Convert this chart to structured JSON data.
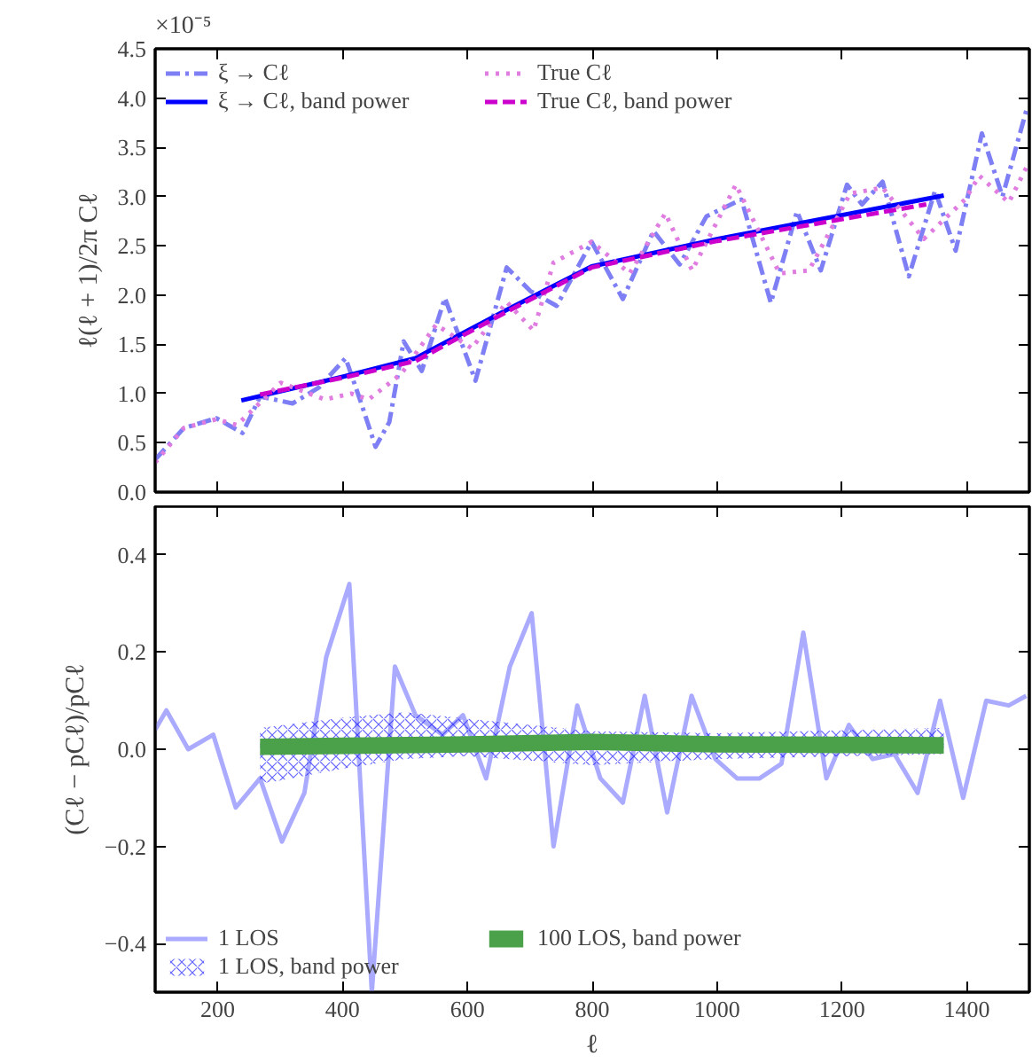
{
  "chart_data": [
    {
      "type": "line",
      "ylabel": "ℓ(ℓ + 1)/2π Cℓ",
      "annotations": [
        "×10⁻⁵"
      ],
      "xlim": [
        100,
        1500
      ],
      "xticks": [
        200,
        400,
        600,
        800,
        1000,
        1200,
        1400
      ],
      "ylim": [
        0,
        4.5
      ],
      "yticks": [
        {
          "value": 0,
          "label": "0.0"
        },
        {
          "value": 0.5,
          "label": "0.5"
        },
        {
          "value": 1,
          "label": "1.0"
        },
        {
          "value": 1.5,
          "label": "1.5"
        },
        {
          "value": 2,
          "label": "2.0"
        },
        {
          "value": 2.5,
          "label": "2.5"
        },
        {
          "value": 3,
          "label": "3.0"
        },
        {
          "value": 3.5,
          "label": "3.5"
        },
        {
          "value": 4,
          "label": "4.0"
        },
        {
          "value": 4.5,
          "label": "4.5"
        }
      ],
      "tick_labels": "y",
      "grid": false,
      "legend": "top left",
      "series": [
        {
          "name": "ξ → Cℓ",
          "color": "#7f7ff5",
          "line_style": "dashdot",
          "x": [
            100,
            146,
            198,
            240,
            268,
            320,
            362,
            405,
            428,
            453,
            475,
            498,
            527,
            564,
            613,
            663,
            701,
            743,
            799,
            849,
            898,
            940,
            983,
            1039,
            1086,
            1128,
            1166,
            1208,
            1232,
            1265,
            1307,
            1349,
            1382,
            1424,
            1457,
            1495
          ],
          "values": [
            0.33,
            0.65,
            0.75,
            0.6,
            0.97,
            0.9,
            1.06,
            1.36,
            0.94,
            0.46,
            0.71,
            1.53,
            1.23,
            1.97,
            1.13,
            2.28,
            2.04,
            1.89,
            2.54,
            1.96,
            2.65,
            2.31,
            2.8,
            2.97,
            1.92,
            2.85,
            2.25,
            3.12,
            2.92,
            3.15,
            2.19,
            3.06,
            2.45,
            3.64,
            3.0,
            3.87
          ]
        },
        {
          "name": "ξ → Cℓ, band power",
          "color": "#0000ff",
          "line_style": "solid",
          "x": [
            238,
            400,
            517,
            663,
            799,
            1001,
            1363
          ],
          "values": [
            0.93,
            1.17,
            1.36,
            1.85,
            2.29,
            2.57,
            3.01
          ]
        },
        {
          "name": "True Cℓ",
          "color": "#e07de0",
          "line_style": "dotted",
          "x": [
            100,
            146,
            198,
            231,
            301,
            372,
            414,
            442,
            494,
            550,
            607,
            663,
            706,
            738,
            799,
            860,
            917,
            960,
            1030,
            1100,
            1147,
            1213,
            1265,
            1331,
            1397,
            1420,
            1467,
            1495
          ],
          "values": [
            0.3,
            0.65,
            0.74,
            0.68,
            1.11,
            0.94,
            1.0,
            0.94,
            1.2,
            1.7,
            1.46,
            1.93,
            1.64,
            2.33,
            2.54,
            2.22,
            2.83,
            2.25,
            3.12,
            2.22,
            2.25,
            3.03,
            3.09,
            2.57,
            2.97,
            3.21,
            2.94,
            3.29
          ]
        },
        {
          "name": "True Cℓ, band power",
          "color": "#cc00cc",
          "line_style": "dashed",
          "x": [
            268,
            400,
            517,
            663,
            799,
            1001,
            1335
          ],
          "values": [
            0.99,
            1.16,
            1.33,
            1.83,
            2.28,
            2.55,
            2.92
          ]
        }
      ]
    },
    {
      "type": "line",
      "xlabel": "ℓ",
      "ylabel": "(Cℓ − pCℓ)/pCℓ",
      "xlim": [
        100,
        1500
      ],
      "xticks": [
        200,
        400,
        600,
        800,
        1000,
        1200,
        1400
      ],
      "ylim": [
        -0.5,
        0.5
      ],
      "yticks": [
        -0.4,
        -0.2,
        {
          "value": 0,
          "label": "0.0"
        },
        0.2,
        0.4
      ],
      "grid": false,
      "legend": "bottom left",
      "series": [
        {
          "name": "1 LOS",
          "color": "#aaaaff",
          "line_style": "solid",
          "x": [
            100,
            118,
            153,
            193,
            229,
            268,
            303,
            339,
            374,
            411,
            447,
            484,
            517,
            560,
            593,
            630,
            668,
            703,
            738,
            776,
            813,
            849,
            884,
            920,
            959,
            997,
            1032,
            1068,
            1103,
            1138,
            1175,
            1211,
            1249,
            1284,
            1321,
            1357,
            1394,
            1431,
            1467,
            1495
          ],
          "values": [
            0.04,
            0.08,
            0.0,
            0.03,
            -0.12,
            -0.06,
            -0.19,
            -0.09,
            0.19,
            0.34,
            -0.5,
            0.17,
            0.07,
            0.03,
            0.07,
            -0.06,
            0.17,
            0.28,
            -0.2,
            0.09,
            -0.06,
            -0.11,
            0.11,
            -0.13,
            0.11,
            -0.02,
            -0.06,
            -0.06,
            -0.03,
            0.24,
            -0.06,
            0.05,
            -0.02,
            -0.01,
            -0.09,
            0.1,
            -0.1,
            0.1,
            0.09,
            0.11
          ]
        },
        {
          "name": "1 LOS, band power",
          "color": "#0000ff",
          "marker": "cross",
          "x": [
            268,
            400,
            500,
            600,
            800,
            1000,
            1363
          ],
          "values": [
            null,
            null,
            null,
            null,
            null,
            null,
            null
          ],
          "lower": [
            -0.072,
            -0.04,
            -0.02,
            -0.014,
            -0.033,
            -0.02,
            -0.01
          ],
          "upper": [
            0.044,
            0.065,
            0.076,
            0.063,
            0.037,
            0.033,
            0.044
          ]
        },
        {
          "name": "100 LOS, band power",
          "color": "#4aa14a",
          "x": [
            268,
            400,
            600,
            800,
            1000,
            1363
          ],
          "values": [
            null,
            null,
            null,
            null,
            null,
            null
          ],
          "lower": [
            -0.012,
            -0.01,
            -0.007,
            -0.002,
            -0.007,
            -0.009
          ],
          "upper": [
            0.022,
            0.024,
            0.027,
            0.032,
            0.027,
            0.025
          ]
        }
      ]
    }
  ]
}
